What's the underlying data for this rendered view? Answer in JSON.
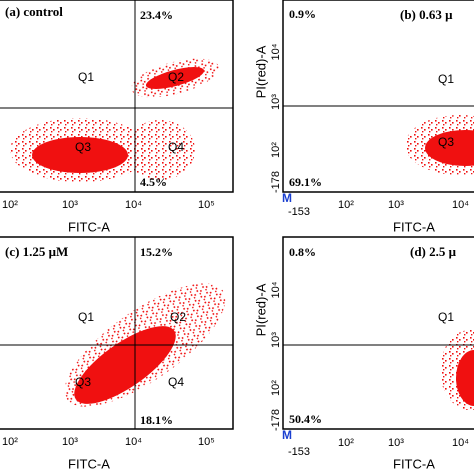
{
  "panels": [
    {
      "title": "(a) control",
      "percent_top": "23.4%",
      "percent_bottom": "4.5%",
      "quadrant_labels": [
        "Q1",
        "Q2",
        "Q3",
        "Q4"
      ],
      "x_label": "FITC-A",
      "x_ticks": [
        "10²",
        "10³",
        "10⁴",
        "10⁵"
      ]
    },
    {
      "title": "(b) 0.63 μ",
      "percent_top": "0.9%",
      "percent_bottom": "69.1%",
      "quadrant_labels": [
        "Q1",
        "Q3"
      ],
      "x_label": "FITC-A",
      "x_ticks": [
        "-153",
        "10²",
        "10³",
        "10⁴"
      ],
      "y_label": "PI(red)-A",
      "y_ticks": [
        "10⁴",
        "10³",
        "10²",
        "-178"
      ],
      "marker": "M"
    },
    {
      "title": "(c) 1.25 μM",
      "percent_top": "15.2%",
      "percent_bottom": "18.1%",
      "quadrant_labels": [
        "Q1",
        "Q2",
        "Q3",
        "Q4"
      ],
      "x_label": "FITC-A",
      "x_ticks": [
        "10²",
        "10³",
        "10⁴",
        "10⁵"
      ]
    },
    {
      "title": "(d) 2.5 μ",
      "percent_top": "0.8%",
      "percent_bottom": "50.4%",
      "quadrant_labels": [
        "Q1"
      ],
      "x_label": "FITC-A",
      "x_ticks": [
        "-153",
        "10²",
        "10³",
        "10⁴"
      ],
      "y_label": "PI(red)-A",
      "y_ticks": [
        "10⁴",
        "10³",
        "10²",
        "-178"
      ],
      "marker": "M"
    }
  ]
}
